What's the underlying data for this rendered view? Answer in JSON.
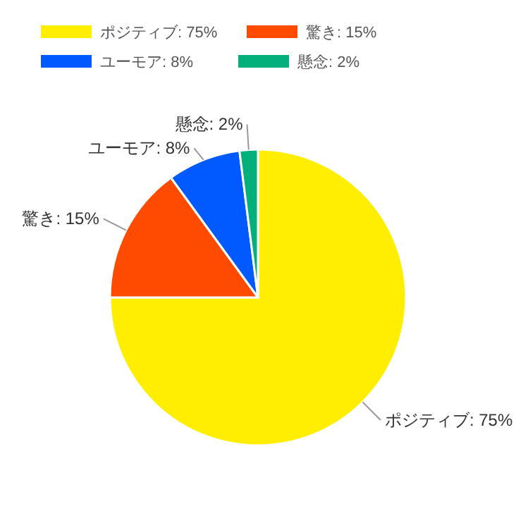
{
  "chart_data": {
    "type": "pie",
    "categories": [
      "ポジティブ: 75%",
      "驚き: 15%",
      "ユーモア: 8%",
      "懸念: 2%"
    ],
    "values": [
      75,
      15,
      8,
      2
    ],
    "colors": [
      "#ffee00",
      "#ff4b00",
      "#005aff",
      "#03af7a"
    ],
    "legend": "top left"
  }
}
